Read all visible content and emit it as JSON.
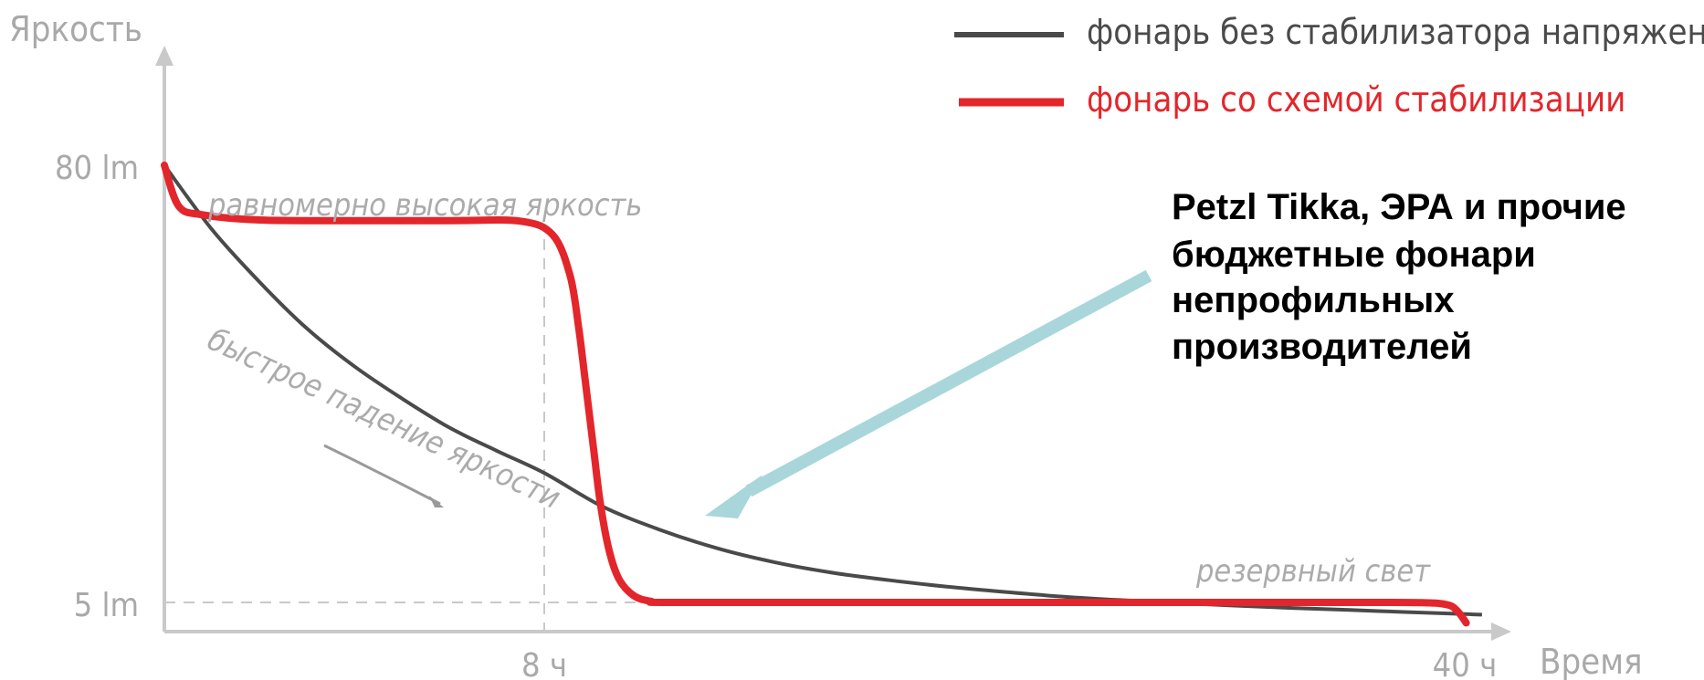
{
  "chart_data": {
    "type": "line",
    "title": "",
    "ylabel": "Яркость",
    "xlabel": "Время",
    "x_ticks": [
      "8 ч",
      "40 ч"
    ],
    "y_ticks": [
      "80 lm",
      "5 lm"
    ],
    "series": [
      {
        "name": "фонарь без стабилизатора напряжения",
        "color": "#4a4a4a",
        "points": [
          [
            0,
            80
          ],
          [
            1,
            69
          ],
          [
            2,
            60
          ],
          [
            3,
            52
          ],
          [
            4,
            45.5
          ],
          [
            5,
            40
          ],
          [
            6,
            35
          ],
          [
            7,
            31
          ],
          [
            8,
            27.2
          ],
          [
            10,
            21.5
          ],
          [
            12,
            17.5
          ],
          [
            14,
            14.3
          ],
          [
            16,
            11.9
          ],
          [
            18,
            10.1
          ],
          [
            20,
            8.8
          ],
          [
            22,
            7.7
          ],
          [
            24,
            6.8
          ],
          [
            26,
            6.0
          ],
          [
            28,
            5.4
          ],
          [
            30,
            4.9
          ],
          [
            32,
            4.45
          ],
          [
            34,
            4.05
          ],
          [
            36,
            3.7
          ],
          [
            38,
            3.35
          ],
          [
            40,
            3.0
          ],
          [
            40.6,
            2.9
          ]
        ]
      },
      {
        "name": "фонарь со схемой стабилизации",
        "color": "#e3262b",
        "points": [
          [
            0,
            80
          ],
          [
            0.3,
            73
          ],
          [
            0.8,
            71.5
          ],
          [
            2,
            70.6
          ],
          [
            4,
            70.5
          ],
          [
            6,
            70.5
          ],
          [
            7.5,
            70.4
          ],
          [
            8.3,
            68
          ],
          [
            8.9,
            61
          ],
          [
            9.2,
            52
          ],
          [
            9.45,
            42
          ],
          [
            9.7,
            32
          ],
          [
            9.95,
            22
          ],
          [
            10.25,
            14
          ],
          [
            10.6,
            9
          ],
          [
            11.1,
            6.2
          ],
          [
            11.7,
            5.2
          ],
          [
            12.5,
            5
          ],
          [
            20,
            5
          ],
          [
            30,
            5
          ],
          [
            36,
            5
          ],
          [
            38.5,
            4.95
          ],
          [
            39.4,
            4.6
          ],
          [
            39.75,
            3.5
          ],
          [
            40.05,
            1.5
          ]
        ]
      }
    ],
    "annotations": [
      "равномерно высокая яркость",
      "быстрое падение яркости",
      "резервный свет"
    ],
    "callout": [
      "Petzl Tikka, ЭРА и прочие",
      "бюджетные фонари",
      "непрофильных",
      "производителей"
    ]
  }
}
